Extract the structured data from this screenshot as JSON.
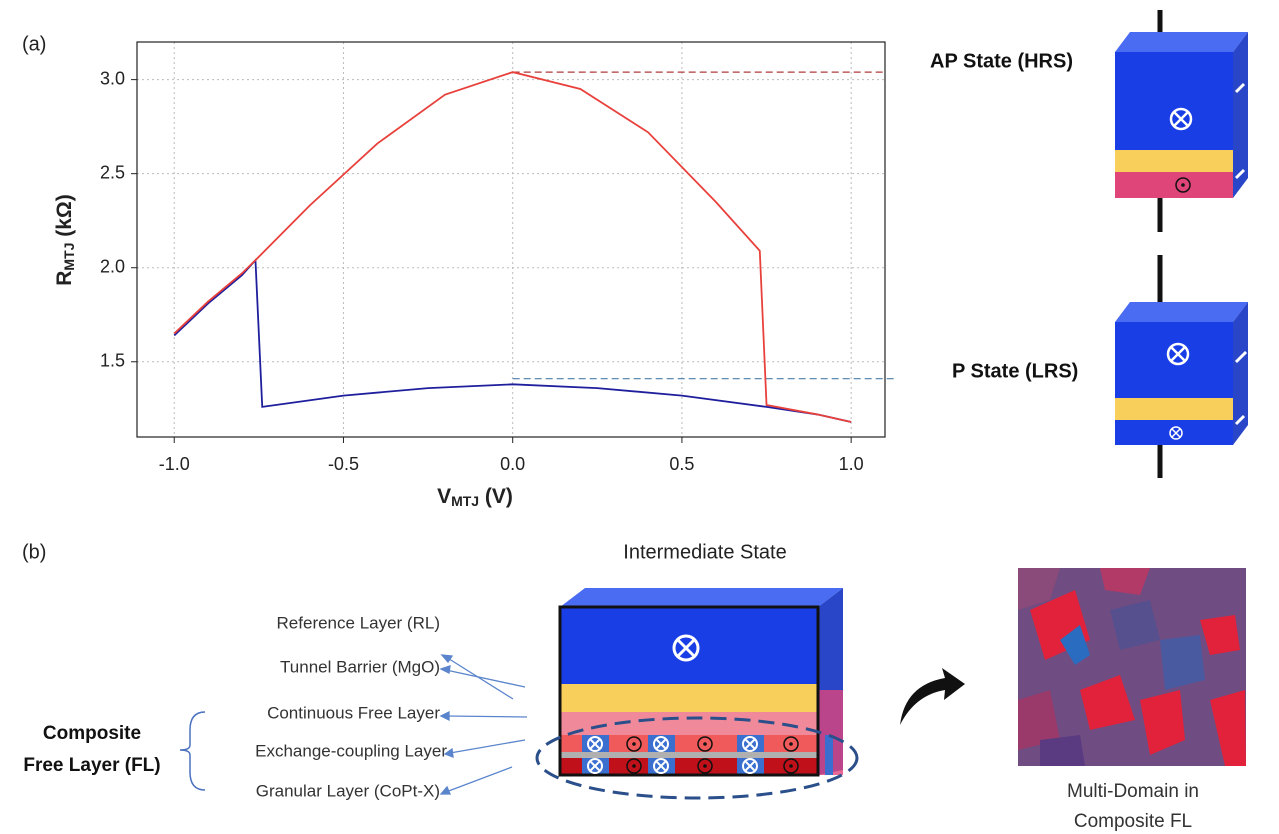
{
  "chart_data": {
    "type": "line",
    "panel_label": "(a)",
    "x_label": {
      "main": "V",
      "sub": "MTJ",
      "unit": " (V)"
    },
    "y_label": {
      "main": "R",
      "sub": "MTJ",
      "unit": " (kΩ)"
    },
    "xlim": [
      -1.11,
      1.1
    ],
    "ylim": [
      1.1,
      3.2
    ],
    "xticks": [
      {
        "value": -1,
        "label": "-1.0"
      },
      -0.5,
      {
        "value": 0,
        "label": "0.0"
      },
      0.5,
      {
        "value": 1,
        "label": "1.0"
      }
    ],
    "yticks": [
      1.5,
      {
        "value": 2,
        "label": "2.0"
      },
      2.5,
      {
        "value": 3,
        "label": "3.0"
      }
    ],
    "grid": true,
    "series": [
      {
        "color": "#1f1f9e",
        "x": [
          -1.0,
          -0.9,
          -0.8,
          -0.76,
          -0.74,
          -0.5,
          -0.25,
          0.0,
          0.25,
          0.5,
          0.75,
          0.9,
          1.0
        ],
        "values": [
          1.64,
          1.81,
          1.96,
          2.04,
          1.26,
          1.32,
          1.36,
          1.38,
          1.36,
          1.32,
          1.26,
          1.22,
          1.18
        ]
      },
      {
        "color": "#e8413c",
        "x": [
          -1.0,
          -0.9,
          -0.8,
          -0.76,
          -0.6,
          -0.4,
          -0.2,
          0.0,
          0.2,
          0.4,
          0.6,
          0.73,
          0.75,
          0.9,
          1.0
        ],
        "values": [
          1.65,
          1.82,
          1.97,
          2.04,
          2.33,
          2.66,
          2.92,
          3.04,
          2.95,
          2.72,
          2.35,
          2.09,
          1.27,
          1.22,
          1.18
        ]
      }
    ],
    "reference_lines": [
      {
        "y": 3.04,
        "x_start": 0,
        "color": "#b03a3a"
      },
      {
        "y": 1.41,
        "x_start": 0,
        "color": "#4a7fa8"
      }
    ],
    "annotations": [
      "AP State (HRS)",
      "P State (LRS)"
    ]
  },
  "panel_b": {
    "panel_label": "(b)",
    "title": "Intermediate State",
    "layers": [
      "Reference Layer (RL)",
      "Tunnel Barrier (MgO)",
      "Continuous Free Layer",
      "Exchange-coupling Layer",
      "Granular Layer (CoPt-X)"
    ],
    "group_label": [
      "Composite",
      "Free Layer (FL)"
    ],
    "image_caption": [
      "Multi-Domain in",
      "Composite FL"
    ]
  }
}
